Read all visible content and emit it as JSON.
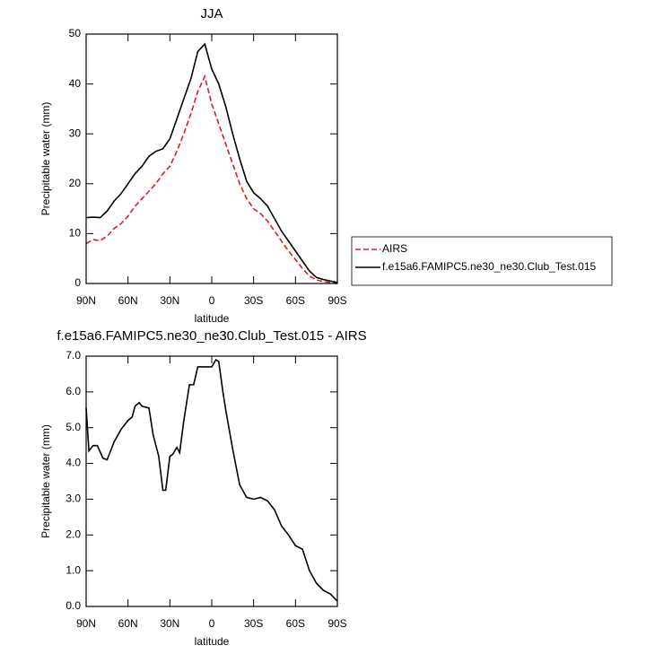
{
  "chart_data": [
    {
      "type": "line",
      "title": "JJA",
      "xlabel": "latitude",
      "ylabel": "Precipitable water (mm)",
      "x": [
        90,
        85,
        80,
        75,
        70,
        65,
        60,
        55,
        50,
        45,
        40,
        35,
        30,
        25,
        20,
        15,
        10,
        5,
        0,
        -5,
        -10,
        -15,
        -20,
        -25,
        -30,
        -35,
        -40,
        -45,
        -50,
        -55,
        -60,
        -65,
        -70,
        -75,
        -80,
        -85,
        -90
      ],
      "xlim": [
        90,
        -90
      ],
      "xticks": [
        {
          "value": 90,
          "label": "90N"
        },
        {
          "value": 60,
          "label": "60N"
        },
        {
          "value": 30,
          "label": "30N"
        },
        0,
        {
          "value": -30,
          "label": "30S"
        },
        {
          "value": -60,
          "label": "60S"
        },
        {
          "value": -90,
          "label": "90S"
        }
      ],
      "ylim": [
        0,
        50
      ],
      "yticks": [
        0,
        10,
        20,
        30,
        40,
        50
      ],
      "legend": "outside-right",
      "series": [
        {
          "name": "AIRS",
          "color": "#e41a1c",
          "line_style": "dashed",
          "values": [
            8,
            8.8,
            8.6,
            9.5,
            11,
            12,
            13.5,
            15.5,
            17,
            18.5,
            20,
            22,
            23.5,
            26.5,
            30,
            34,
            38.5,
            41.5,
            36,
            32,
            28,
            24,
            20,
            17,
            15,
            14,
            12.5,
            10.5,
            8.5,
            6.5,
            4.8,
            3,
            1.5,
            0.7,
            0.4,
            0.2,
            0
          ]
        },
        {
          "name": "f.e15a6.FAMIPC5.ne30_ne30.Club_Test.015",
          "color": "#000000",
          "line_style": "solid",
          "values": [
            13.2,
            13.3,
            13.2,
            14.5,
            16.5,
            18,
            20,
            22,
            23.5,
            25.5,
            26.5,
            27,
            29,
            33,
            37,
            41,
            46.5,
            48,
            43,
            40,
            35.5,
            30,
            25,
            20.5,
            18.2,
            17,
            15.5,
            13,
            10.5,
            8.5,
            6.5,
            4.5,
            2.5,
            1.2,
            0.8,
            0.5,
            0.2
          ]
        }
      ]
    },
    {
      "type": "line",
      "title": "f.e15a6.FAMIPC5.ne30_ne30.Club_Test.015 - AIRS",
      "xlabel": "latitude",
      "ylabel": "Precipitable water (mm)",
      "x": [
        90,
        88,
        85,
        82,
        78,
        75,
        72,
        70,
        65,
        60,
        57,
        55,
        52,
        50,
        45,
        42,
        38,
        35,
        33,
        30,
        28,
        25,
        23,
        20,
        16,
        13,
        10,
        5,
        0,
        -3,
        -5,
        -8,
        -10,
        -15,
        -20,
        -25,
        -30,
        -35,
        -40,
        -45,
        -50,
        -55,
        -60,
        -65,
        -70,
        -75,
        -80,
        -85,
        -90
      ],
      "xlim": [
        90,
        -90
      ],
      "xticks": [
        {
          "value": 90,
          "label": "90N"
        },
        {
          "value": 60,
          "label": "60N"
        },
        {
          "value": 30,
          "label": "30N"
        },
        0,
        {
          "value": -30,
          "label": "30S"
        },
        {
          "value": -60,
          "label": "60S"
        },
        {
          "value": -90,
          "label": "90S"
        }
      ],
      "ylim": [
        0,
        7
      ],
      "yticks": [
        {
          "value": 0,
          "label": "0.0"
        },
        {
          "value": 1,
          "label": "1.0"
        },
        {
          "value": 2,
          "label": "2.0"
        },
        {
          "value": 3,
          "label": "3.0"
        },
        {
          "value": 4,
          "label": "4.0"
        },
        {
          "value": 5,
          "label": "5.0"
        },
        {
          "value": 6,
          "label": "6.0"
        },
        {
          "value": 7,
          "label": "7.0"
        }
      ],
      "color": "#000000",
      "line_style": "solid",
      "values": [
        5.55,
        4.35,
        4.5,
        4.5,
        4.15,
        4.1,
        4.4,
        4.6,
        4.95,
        5.2,
        5.3,
        5.6,
        5.7,
        5.6,
        5.55,
        4.8,
        4.2,
        3.25,
        3.25,
        4.2,
        4.25,
        4.45,
        4.3,
        5.2,
        6.2,
        6.2,
        6.7,
        6.7,
        6.7,
        6.9,
        6.85,
        6.0,
        5.5,
        4.4,
        3.4,
        3.05,
        3.0,
        3.05,
        2.95,
        2.7,
        2.25,
        2.0,
        1.7,
        1.6,
        1.0,
        0.65,
        0.45,
        0.35,
        0.15
      ]
    }
  ]
}
